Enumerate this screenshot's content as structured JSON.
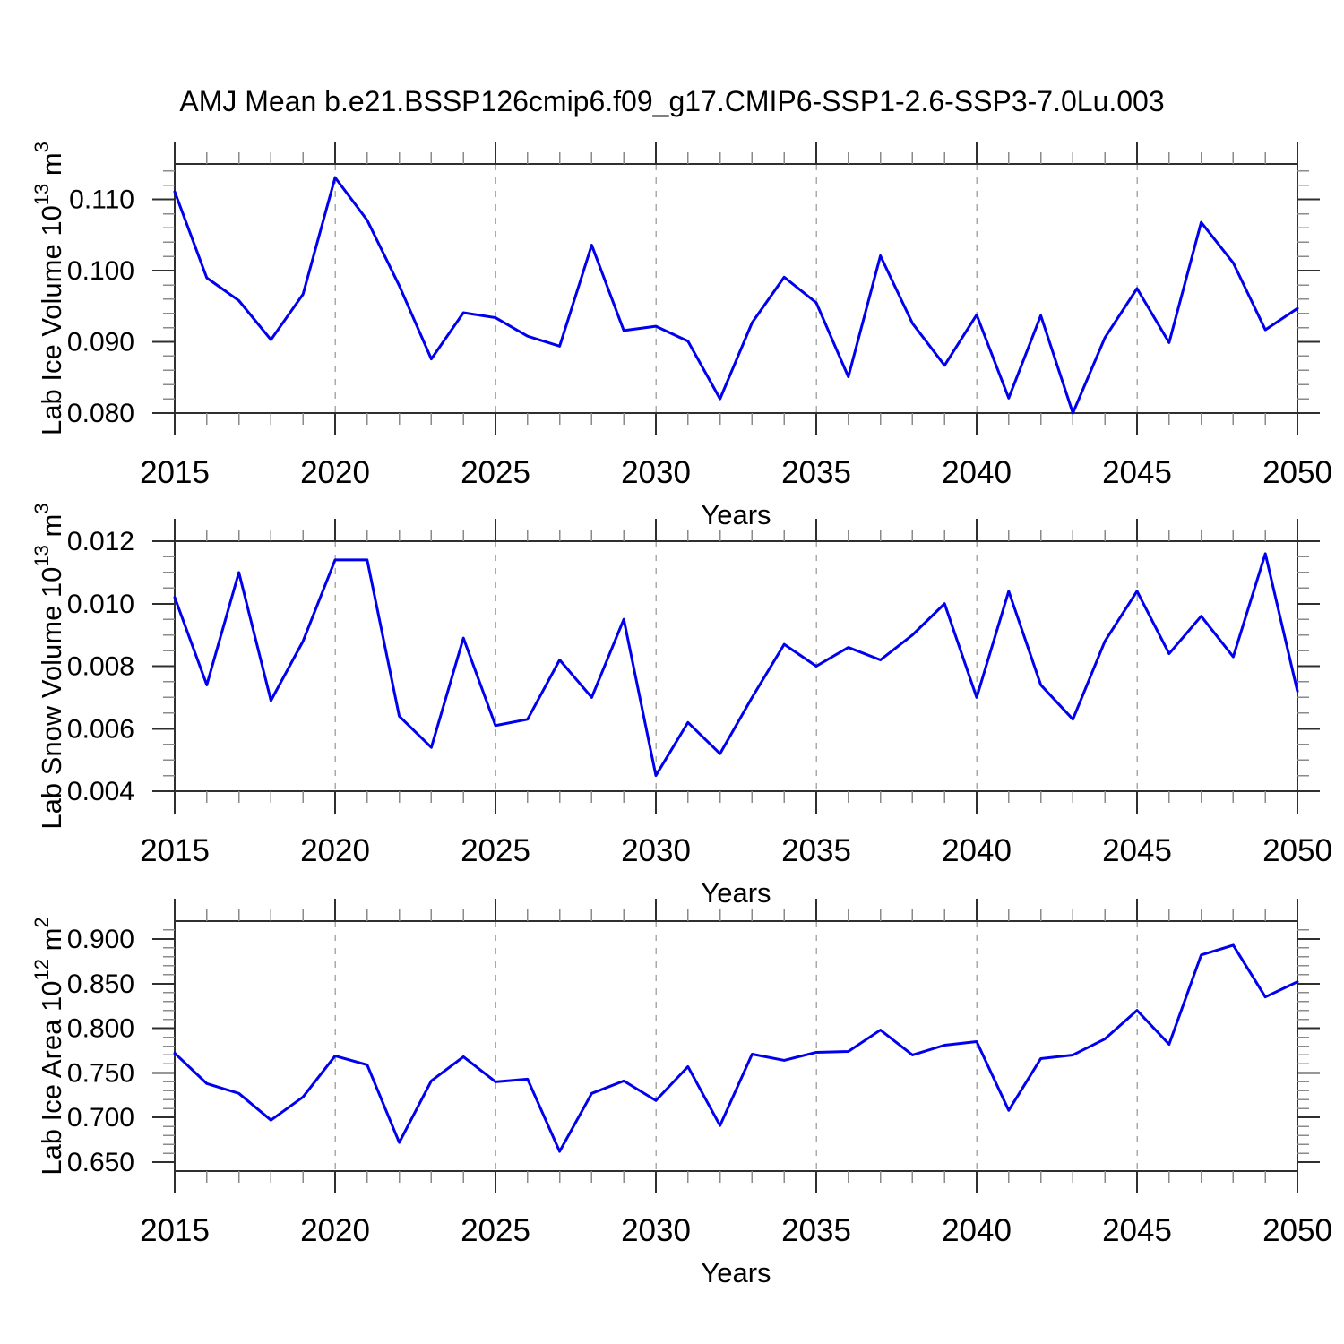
{
  "title": "AMJ Mean b.e21.BSSP126cmip6.f09_g17.CMIP6-SSP1-2.6-SSP3-7.0Lu.003",
  "colors": {
    "line": "#0000EE",
    "frame": "#2f2f2f",
    "major_tick": "#2f2f2f",
    "minor_tick": "#8a8a8a",
    "gridline": "#aaaaaa",
    "text": "#000000",
    "background": "#ffffff"
  },
  "x_axis": {
    "label": "Years",
    "start": 2015,
    "end": 2050,
    "major_tick_step": 5,
    "minor_tick_step": 1,
    "major_tick_labels": [
      "2015",
      "2020",
      "2025",
      "2030",
      "2035",
      "2040",
      "2045",
      "2050"
    ],
    "gridline_years": [
      2020,
      2025,
      2030,
      2035,
      2040,
      2045
    ],
    "years": [
      2015,
      2016,
      2017,
      2018,
      2019,
      2020,
      2021,
      2022,
      2023,
      2024,
      2025,
      2026,
      2027,
      2028,
      2029,
      2030,
      2031,
      2032,
      2033,
      2034,
      2035,
      2036,
      2037,
      2038,
      2039,
      2040,
      2041,
      2042,
      2043,
      2044,
      2045,
      2046,
      2047,
      2048,
      2049,
      2050
    ]
  },
  "chart_data": [
    {
      "type": "line",
      "series_name": "Lab Ice Volume",
      "ylabel_text": "Lab Ice Volume 10^13 m^3",
      "ylabel_parts": [
        {
          "text": "Lab Ice Volume 10"
        },
        {
          "text": "13",
          "sup": true
        },
        {
          "text": " m"
        },
        {
          "text": "3",
          "sup": true
        }
      ],
      "xlabel": "Years",
      "ylim": [
        0.08,
        0.115
      ],
      "yticks": [
        0.08,
        0.09,
        0.1,
        0.11
      ],
      "ytick_labels": [
        "0.080",
        "0.090",
        "0.100",
        "0.110"
      ],
      "y_minor_step": 0.002,
      "grid": "vertical-dashed",
      "legend": "none",
      "values": [
        0.1111,
        0.099,
        0.0958,
        0.0903,
        0.0967,
        0.1131,
        0.1071,
        0.0979,
        0.0876,
        0.0941,
        0.0934,
        0.0908,
        0.0894,
        0.1036,
        0.0916,
        0.0922,
        0.0901,
        0.082,
        0.0927,
        0.0991,
        0.0955,
        0.0851,
        0.1021,
        0.0926,
        0.0867,
        0.0938,
        0.0821,
        0.0937,
        0.08,
        0.0906,
        0.0975,
        0.0899,
        0.1068,
        0.1011,
        0.0917,
        0.0947
      ]
    },
    {
      "type": "line",
      "series_name": "Lab Snow Volume",
      "ylabel_text": "Lab Snow Volume 10^13 m^3",
      "ylabel_parts": [
        {
          "text": "Lab Snow Volume 10"
        },
        {
          "text": "13",
          "sup": true
        },
        {
          "text": " m"
        },
        {
          "text": "3",
          "sup": true
        }
      ],
      "xlabel": "Years",
      "ylim": [
        0.004,
        0.012
      ],
      "yticks": [
        0.004,
        0.006,
        0.008,
        0.01,
        0.012
      ],
      "ytick_labels": [
        "0.004",
        "0.006",
        "0.008",
        "0.010",
        "0.012"
      ],
      "y_minor_step": 0.0005,
      "grid": "vertical-dashed",
      "legend": "none",
      "values": [
        0.0102,
        0.0074,
        0.011,
        0.0069,
        0.0088,
        0.0114,
        0.0114,
        0.0064,
        0.0054,
        0.0089,
        0.0061,
        0.0063,
        0.0082,
        0.007,
        0.0095,
        0.0045,
        0.0062,
        0.0052,
        0.007,
        0.0087,
        0.008,
        0.0086,
        0.0082,
        0.009,
        0.01,
        0.007,
        0.0104,
        0.0074,
        0.0063,
        0.0088,
        0.0104,
        0.0084,
        0.0096,
        0.0083,
        0.0116,
        0.0072
      ]
    },
    {
      "type": "line",
      "series_name": "Lab Ice Area",
      "ylabel_text": "Lab Ice Area 10^12 m^2",
      "ylabel_parts": [
        {
          "text": "Lab Ice Area 10"
        },
        {
          "text": "12",
          "sup": true
        },
        {
          "text": " m"
        },
        {
          "text": "2",
          "sup": true
        }
      ],
      "xlabel": "Years",
      "ylim": [
        0.64,
        0.92
      ],
      "yticks": [
        0.65,
        0.7,
        0.75,
        0.8,
        0.85,
        0.9
      ],
      "ytick_labels": [
        "0.650",
        "0.700",
        "0.750",
        "0.800",
        "0.850",
        "0.900"
      ],
      "y_minor_step": 0.01,
      "grid": "vertical-dashed",
      "legend": "none",
      "values": [
        0.772,
        0.738,
        0.727,
        0.697,
        0.723,
        0.769,
        0.759,
        0.672,
        0.741,
        0.768,
        0.74,
        0.743,
        0.662,
        0.727,
        0.741,
        0.719,
        0.757,
        0.691,
        0.771,
        0.764,
        0.773,
        0.774,
        0.798,
        0.77,
        0.781,
        0.785,
        0.708,
        0.766,
        0.77,
        0.788,
        0.82,
        0.782,
        0.882,
        0.893,
        0.835,
        0.852
      ]
    }
  ]
}
